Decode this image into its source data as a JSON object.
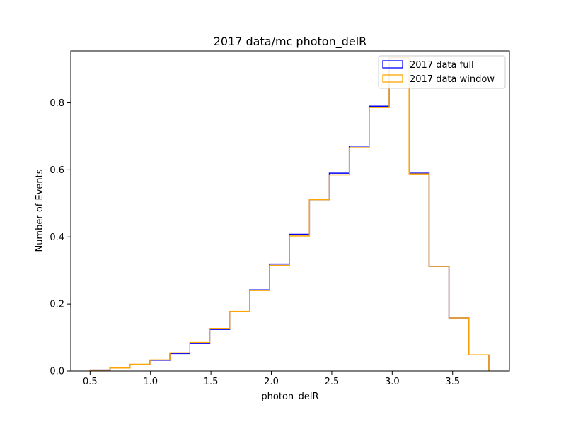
{
  "chart_data": {
    "type": "histogram-step",
    "title": "2017 data/mc photon_delR",
    "xlabel": "photon_delR",
    "ylabel": "Number of Events",
    "xlim": [
      0.34,
      3.97
    ],
    "ylim": [
      0,
      0.955
    ],
    "xticks": [
      0.5,
      1.0,
      1.5,
      2.0,
      2.5,
      3.0,
      3.5
    ],
    "xtick_labels": [
      "0.5",
      "1.0",
      "1.5",
      "2.0",
      "2.5",
      "3.0",
      "3.5"
    ],
    "yticks": [
      0.0,
      0.2,
      0.4,
      0.6,
      0.8
    ],
    "ytick_labels": [
      "0.0",
      "0.2",
      "0.4",
      "0.6",
      "0.8"
    ],
    "bin_edges": [
      0.5,
      0.665,
      0.83,
      0.995,
      1.16,
      1.325,
      1.49,
      1.655,
      1.82,
      1.985,
      2.15,
      2.315,
      2.48,
      2.645,
      2.81,
      2.975,
      3.14,
      3.305,
      3.47,
      3.635,
      3.8
    ],
    "legend_position": "upper-right",
    "series": [
      {
        "name": "2017 data full",
        "color": "#0000ff",
        "values": [
          0.003,
          0.009,
          0.019,
          0.032,
          0.052,
          0.082,
          0.124,
          0.177,
          0.242,
          0.319,
          0.408,
          0.511,
          0.59,
          0.671,
          0.79,
          0.935,
          0.59,
          0.312,
          0.158,
          0.048
        ]
      },
      {
        "name": "2017 data window",
        "color": "#ffa500",
        "values": [
          0.003,
          0.009,
          0.02,
          0.033,
          0.054,
          0.085,
          0.127,
          0.178,
          0.24,
          0.315,
          0.403,
          0.511,
          0.585,
          0.666,
          0.786,
          0.935,
          0.588,
          0.312,
          0.158,
          0.048
        ]
      }
    ]
  }
}
